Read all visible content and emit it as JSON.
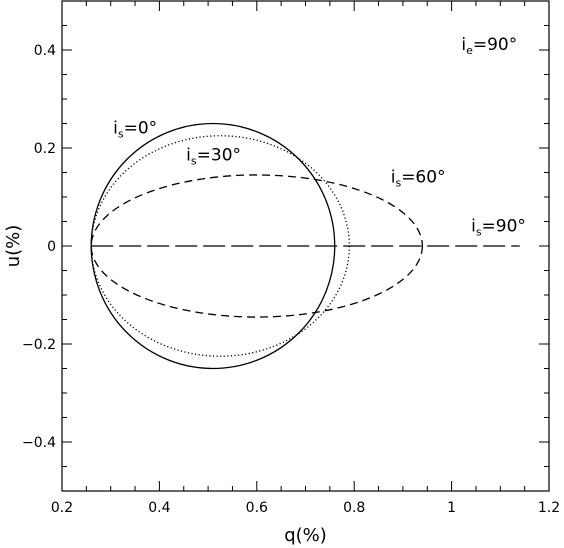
{
  "chart_data": {
    "type": "line",
    "xlabel": "q(%)",
    "ylabel": "u(%)",
    "xlim": [
      0.2,
      1.2
    ],
    "ylim": [
      -0.5,
      0.5
    ],
    "x_ticks": [
      "0.2",
      "0.4",
      "0.6",
      "0.8",
      "1",
      "1.2"
    ],
    "y_ticks": [
      "-0.4",
      "-0.2",
      "0",
      "0.2",
      "0.4"
    ],
    "grid": false,
    "legend": "none",
    "series": [
      {
        "key": "is0",
        "style": "solid",
        "center": [
          0.51,
          0.0
        ],
        "x_radius": 0.25,
        "y_radius": 0.25,
        "x_range": [
          0.26,
          0.76
        ],
        "y_range": [
          -0.25,
          0.25
        ]
      },
      {
        "key": "is30",
        "style": "dotted",
        "center": [
          0.525,
          0.0
        ],
        "x_radius": 0.265,
        "y_radius": 0.225,
        "x_range": [
          0.26,
          0.79
        ],
        "y_range": [
          -0.225,
          0.225
        ]
      },
      {
        "key": "is60",
        "style": "dashed",
        "center": [
          0.6,
          0.0
        ],
        "x_radius": 0.34,
        "y_radius": 0.145,
        "x_range": [
          0.26,
          0.94
        ],
        "y_range": [
          -0.145,
          0.145
        ]
      },
      {
        "key": "is90",
        "style": "long-dashed",
        "x": [
          0.26,
          1.14
        ],
        "y": [
          0.0,
          0.0
        ]
      }
    ],
    "annotations": [
      {
        "key": "ie",
        "base": "i",
        "sub": "e",
        "rest": "=90°",
        "at": [
          1.02,
          0.4
        ]
      },
      {
        "key": "is0",
        "base": "i",
        "sub": "s",
        "rest": "=0°",
        "at": [
          0.305,
          0.23
        ]
      },
      {
        "key": "is30",
        "base": "i",
        "sub": "s",
        "rest": "=30°",
        "at": [
          0.455,
          0.175
        ]
      },
      {
        "key": "is60",
        "base": "i",
        "sub": "s",
        "rest": "=60°",
        "at": [
          0.875,
          0.13
        ]
      },
      {
        "key": "is90",
        "base": "i",
        "sub": "s",
        "rest": "=90°",
        "at": [
          1.04,
          0.03
        ]
      }
    ]
  }
}
